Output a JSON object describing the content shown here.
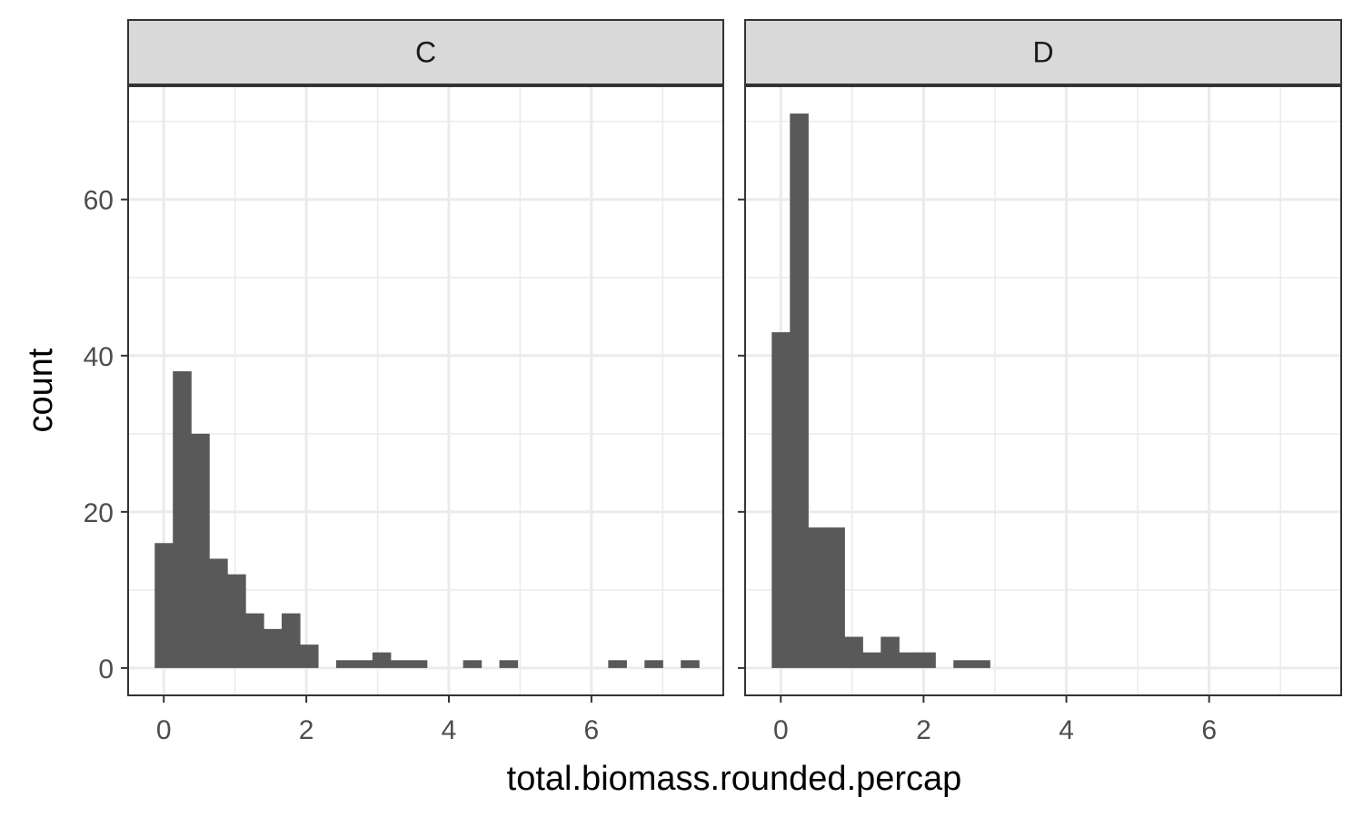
{
  "chart_data": {
    "type": "bar",
    "subtype": "faceted-histogram",
    "xlabel": "total.biomass.rounded.percap",
    "ylabel": "count",
    "xlim": [
      -0.5,
      7.85
    ],
    "ylim": [
      -3.5,
      74.5
    ],
    "x_ticks": [
      0,
      2,
      4,
      6
    ],
    "x_tick_labels": [
      "0",
      "2",
      "4",
      "6"
    ],
    "y_ticks": [
      0,
      20,
      40,
      60
    ],
    "y_tick_labels": [
      "0",
      "20",
      "40",
      "60"
    ],
    "bin_width": 0.2545,
    "first_bin_left": -0.127,
    "bar_color": "#595959",
    "strip_fill": "#d9d9d9",
    "grid": true,
    "legend": "none",
    "facets": [
      {
        "label": "C",
        "counts": [
          16,
          38,
          30,
          14,
          12,
          7,
          5,
          7,
          3,
          0,
          1,
          1,
          2,
          1,
          1,
          0,
          0,
          1,
          0,
          1,
          0,
          0,
          0,
          0,
          0,
          1,
          0,
          1,
          0,
          1
        ]
      },
      {
        "label": "D",
        "counts": [
          43,
          71,
          18,
          18,
          4,
          2,
          4,
          2,
          2,
          0,
          1,
          1
        ]
      }
    ]
  }
}
